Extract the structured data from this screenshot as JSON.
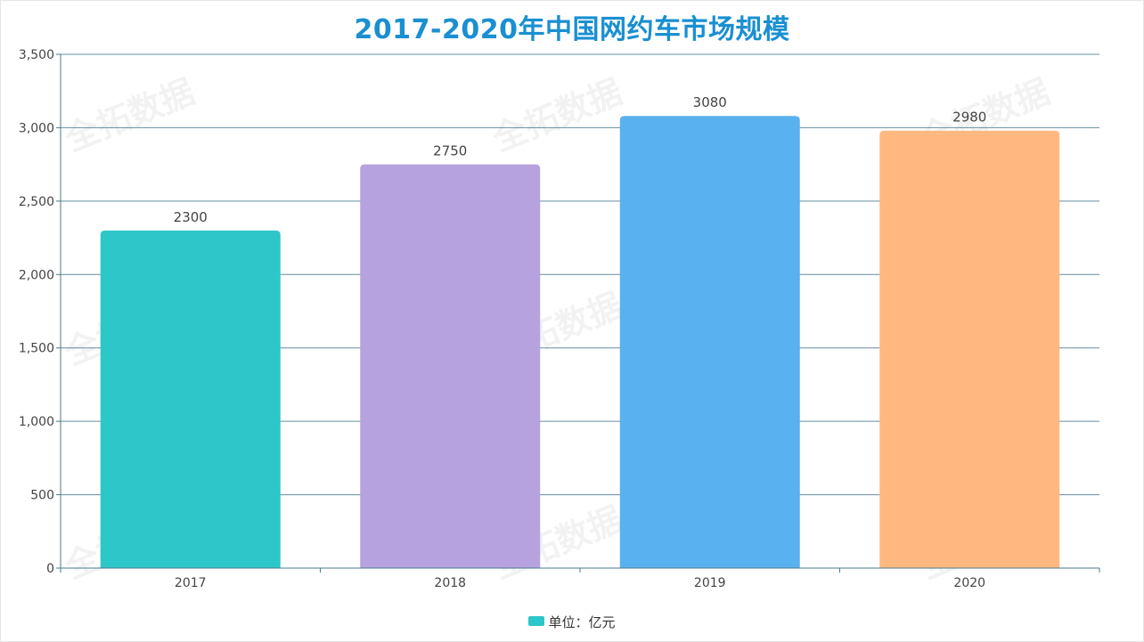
{
  "chart_data": {
    "type": "bar",
    "title": "2017-2020年中国网约车市场规模",
    "xlabel": "",
    "ylabel": "",
    "categories": [
      "2017",
      "2018",
      "2019",
      "2020"
    ],
    "values": [
      2300,
      2750,
      3080,
      2980
    ],
    "bar_colors": [
      "#2ec7c9",
      "#b6a2de",
      "#5ab1ef",
      "#ffb980"
    ],
    "ylim": [
      0,
      3500
    ],
    "y_ticks": [
      0,
      500,
      1000,
      1500,
      2000,
      2500,
      3000,
      3500
    ],
    "y_tick_labels": [
      "0",
      "500",
      "1,000",
      "1,500",
      "2,000",
      "2,500",
      "3,000",
      "3,500"
    ],
    "grid": true,
    "legend": {
      "position": "bottom",
      "label": "单位：亿元",
      "color": "#2ec7c9"
    },
    "watermark": "全拓数据",
    "title_color": "#1a8fd1",
    "axis_color": "#4a7a8c"
  }
}
